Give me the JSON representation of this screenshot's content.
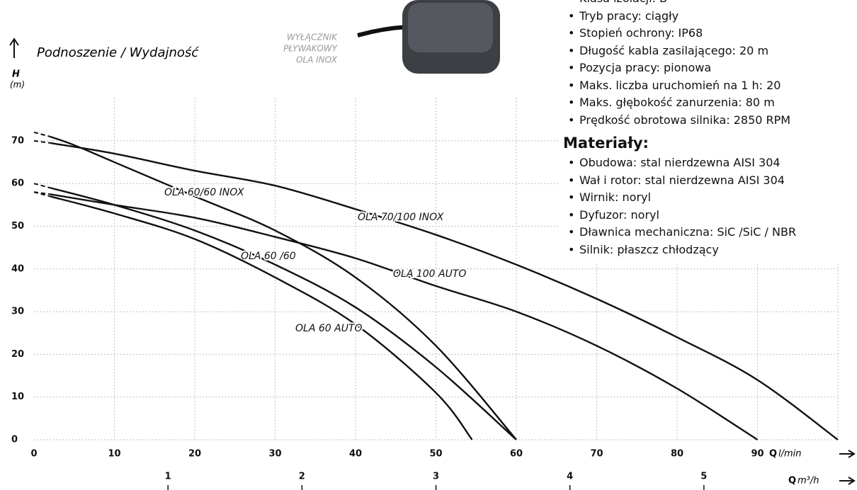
{
  "chart_data": {
    "type": "line",
    "title": "Podnoszenie / Wydajność",
    "y_label": "H",
    "y_unit": "(m)",
    "x_label": "Q",
    "x_unit": "l/min",
    "x2_label": "Q",
    "x2_unit": "m³/h",
    "xlim": [
      0,
      100
    ],
    "xticks": [
      0,
      10,
      20,
      30,
      40,
      50,
      60,
      70,
      80,
      90
    ],
    "ylim": [
      0,
      80
    ],
    "yticks": [
      0,
      10,
      20,
      30,
      40,
      50,
      60,
      70
    ],
    "x2lim": [
      0,
      6
    ],
    "x2ticks": [
      1,
      2,
      3,
      4,
      5
    ],
    "grid": true,
    "series": [
      {
        "name": "OLA 70/100 INOX",
        "color": "#111111",
        "x": [
          0,
          2,
          10,
          20,
          30,
          40,
          50,
          60,
          70,
          80,
          90,
          100
        ],
        "values": [
          70,
          69.5,
          67,
          63,
          59.5,
          54,
          48,
          41,
          33,
          24,
          14,
          0
        ]
      },
      {
        "name": "OLA 60/60 INOX",
        "color": "#111111",
        "x": [
          0,
          2,
          5,
          10,
          20,
          30,
          40,
          50,
          60
        ],
        "values": [
          72,
          71,
          69,
          65,
          57,
          49,
          38,
          22,
          0
        ]
      },
      {
        "name": "OLA 60 /60",
        "color": "#111111",
        "x": [
          0,
          2,
          10,
          20,
          30,
          40,
          50,
          60
        ],
        "values": [
          60,
          59,
          55,
          49,
          41,
          31,
          17,
          0
        ]
      },
      {
        "name": "OLA 100 AUTO",
        "color": "#111111",
        "x": [
          0,
          2,
          10,
          20,
          30,
          40,
          50,
          60,
          70,
          80,
          90
        ],
        "values": [
          58,
          57.5,
          55,
          52,
          47.5,
          42.5,
          36,
          30,
          22,
          12,
          0
        ]
      },
      {
        "name": "OLA 60 AUTO",
        "color": "#111111",
        "x": [
          0,
          2,
          10,
          20,
          30,
          40,
          50,
          54.5
        ],
        "values": [
          58,
          57,
          53,
          47,
          38,
          27,
          11,
          0
        ]
      }
    ]
  },
  "float_switch": {
    "lines": [
      "WYŁĄCZNIK",
      "PŁYWAKOWY",
      "OLA INOX"
    ]
  },
  "specs": {
    "items": [
      "Klasa izolacji: B",
      "Tryb pracy: ciągły",
      "Stopień ochrony: IP68",
      "Długość kabla zasilającego: 20 m",
      "Pozycja pracy: pionowa",
      "Maks. liczba uruchomień na 1 h: 20",
      "Maks. głębokość zanurzenia: 80 m",
      "Prędkość obrotowa silnika: 2850 RPM"
    ]
  },
  "materials": {
    "heading": "Materiały:",
    "items": [
      "Obudowa: stal nierdzewna AISI 304",
      "Wał i rotor: stal nierdzewna AISI 304",
      "Wirnik: noryl",
      "Dyfuzor: noryl",
      "Dławnica mechaniczna: SiC /SiC / NBR",
      "Silnik: płaszcz chłodzący"
    ]
  }
}
